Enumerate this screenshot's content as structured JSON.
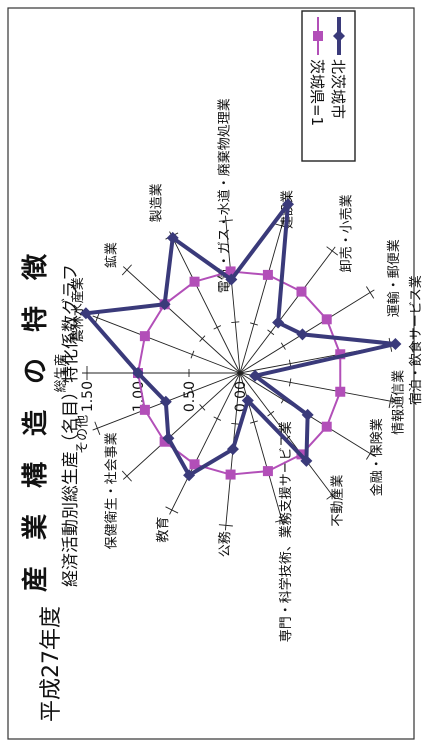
{
  "page": {
    "era_label": "平成27年度",
    "title": "産　業　構　造　の　特　徴",
    "subtitle": "経済活動別総生産（名目）特化係数グラフ"
  },
  "legend": {
    "series_1": "北茨城市",
    "series_2": "茨城県=1"
  },
  "colors": {
    "series_1": "#3a3a7a",
    "series_2": "#b24fb8",
    "axis": "#222222",
    "frame": "#333333"
  },
  "chart_data": {
    "type": "radar",
    "title": "特化係数グラフ",
    "axis_tick_labels": [
      "0.00",
      "0.50",
      "1.00",
      "1.50"
    ],
    "axis_max": 1.5,
    "categories": [
      "総生産",
      "農林水産業",
      "鉱業",
      "製造業",
      "電気・ガス・水道・廃棄物処理業",
      "建設業",
      "卸売・小売業",
      "運輸・郵便業",
      "宿泊・飲食サービス業",
      "情報通信業",
      "金融・保険業",
      "不動産業",
      "専門・科学技術、業務支援サービス業",
      "公務",
      "教育",
      "保健衛生・社会事業",
      "その他"
    ],
    "series": [
      {
        "name": "北茨城市",
        "values": [
          1.0,
          1.62,
          1.0,
          1.48,
          0.92,
          1.72,
          0.62,
          0.72,
          1.55,
          0.15,
          0.78,
          1.08,
          0.28,
          0.75,
          1.12,
          0.95,
          0.78
        ]
      },
      {
        "name": "茨城県=1",
        "values": [
          1,
          1,
          1,
          1,
          1,
          1,
          1,
          1,
          1,
          1,
          1,
          1,
          1,
          1,
          1,
          1,
          1
        ]
      }
    ]
  }
}
